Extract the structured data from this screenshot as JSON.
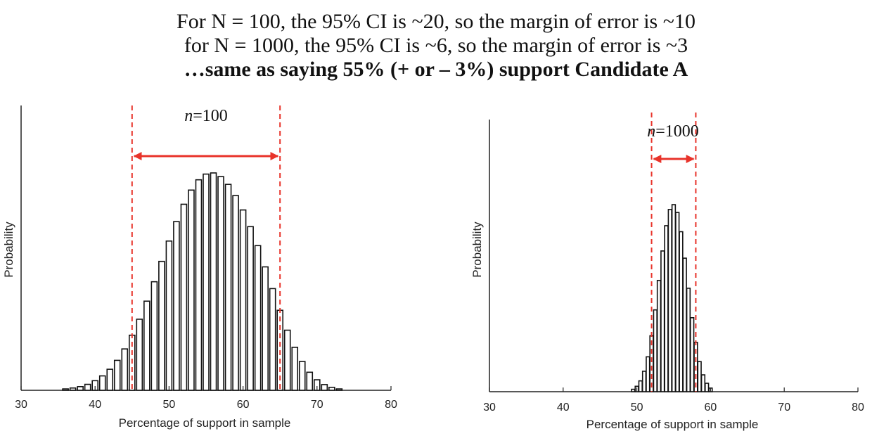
{
  "header": {
    "line1": "For N = 100, the 95% CI is ~20, so the margin of error is ~10",
    "line2": "for N = 1000, the 95% CI is ~6, so the margin of error is ~3",
    "line3": "…same as saying 55% (+ or – 3%) support Candidate A"
  },
  "colors": {
    "bar_fill": "#ffffff",
    "bar_stroke": "#111111",
    "ci_line": "#e8332a",
    "axis": "#222222"
  },
  "chart_data": [
    {
      "type": "bar",
      "n_italic": "n",
      "n_value": "=100",
      "xlabel": "Percentage of support in sample",
      "ylabel": "Probability",
      "xlim": [
        30,
        80
      ],
      "xticks": [
        30,
        40,
        50,
        60,
        70,
        80
      ],
      "ylim": [
        0,
        0.12
      ],
      "ci": [
        45,
        65
      ],
      "x": [
        36,
        37,
        38,
        39,
        40,
        41,
        42,
        43,
        44,
        45,
        46,
        47,
        48,
        49,
        50,
        51,
        52,
        53,
        54,
        55,
        56,
        57,
        58,
        59,
        60,
        61,
        62,
        63,
        64,
        65,
        66,
        67,
        68,
        69,
        70,
        71,
        72,
        73
      ],
      "values": [
        0.0006,
        0.001,
        0.0016,
        0.0026,
        0.0042,
        0.0063,
        0.0092,
        0.0131,
        0.0181,
        0.0241,
        0.0311,
        0.039,
        0.0475,
        0.0564,
        0.0653,
        0.0738,
        0.0814,
        0.0876,
        0.0921,
        0.0946,
        0.0951,
        0.0935,
        0.0901,
        0.0852,
        0.0789,
        0.0716,
        0.0633,
        0.054,
        0.0445,
        0.035,
        0.0263,
        0.0188,
        0.0126,
        0.0079,
        0.0046,
        0.0025,
        0.0013,
        0.0006
      ]
    },
    {
      "type": "bar",
      "n_italic": "n",
      "n_value": "=1000",
      "xlabel": "Percentage of support in sample",
      "ylabel": "Probability",
      "xlim": [
        30,
        80
      ],
      "xticks": [
        30,
        40,
        50,
        60,
        70,
        80
      ],
      "ylim": [
        0,
        0.038
      ],
      "ci": [
        52,
        58
      ],
      "x": [
        49.5,
        50,
        50.5,
        51,
        51.5,
        52,
        52.5,
        53,
        53.5,
        54,
        54.5,
        55,
        55.5,
        56,
        56.5,
        57,
        57.5,
        58,
        58.5,
        59,
        59.5,
        60
      ],
      "values": [
        0.0004,
        0.0009,
        0.0018,
        0.0034,
        0.0058,
        0.0093,
        0.0136,
        0.0185,
        0.0234,
        0.0276,
        0.0303,
        0.0311,
        0.0298,
        0.0266,
        0.0222,
        0.0172,
        0.0123,
        0.0082,
        0.005,
        0.0028,
        0.0014,
        0.0006
      ]
    }
  ]
}
